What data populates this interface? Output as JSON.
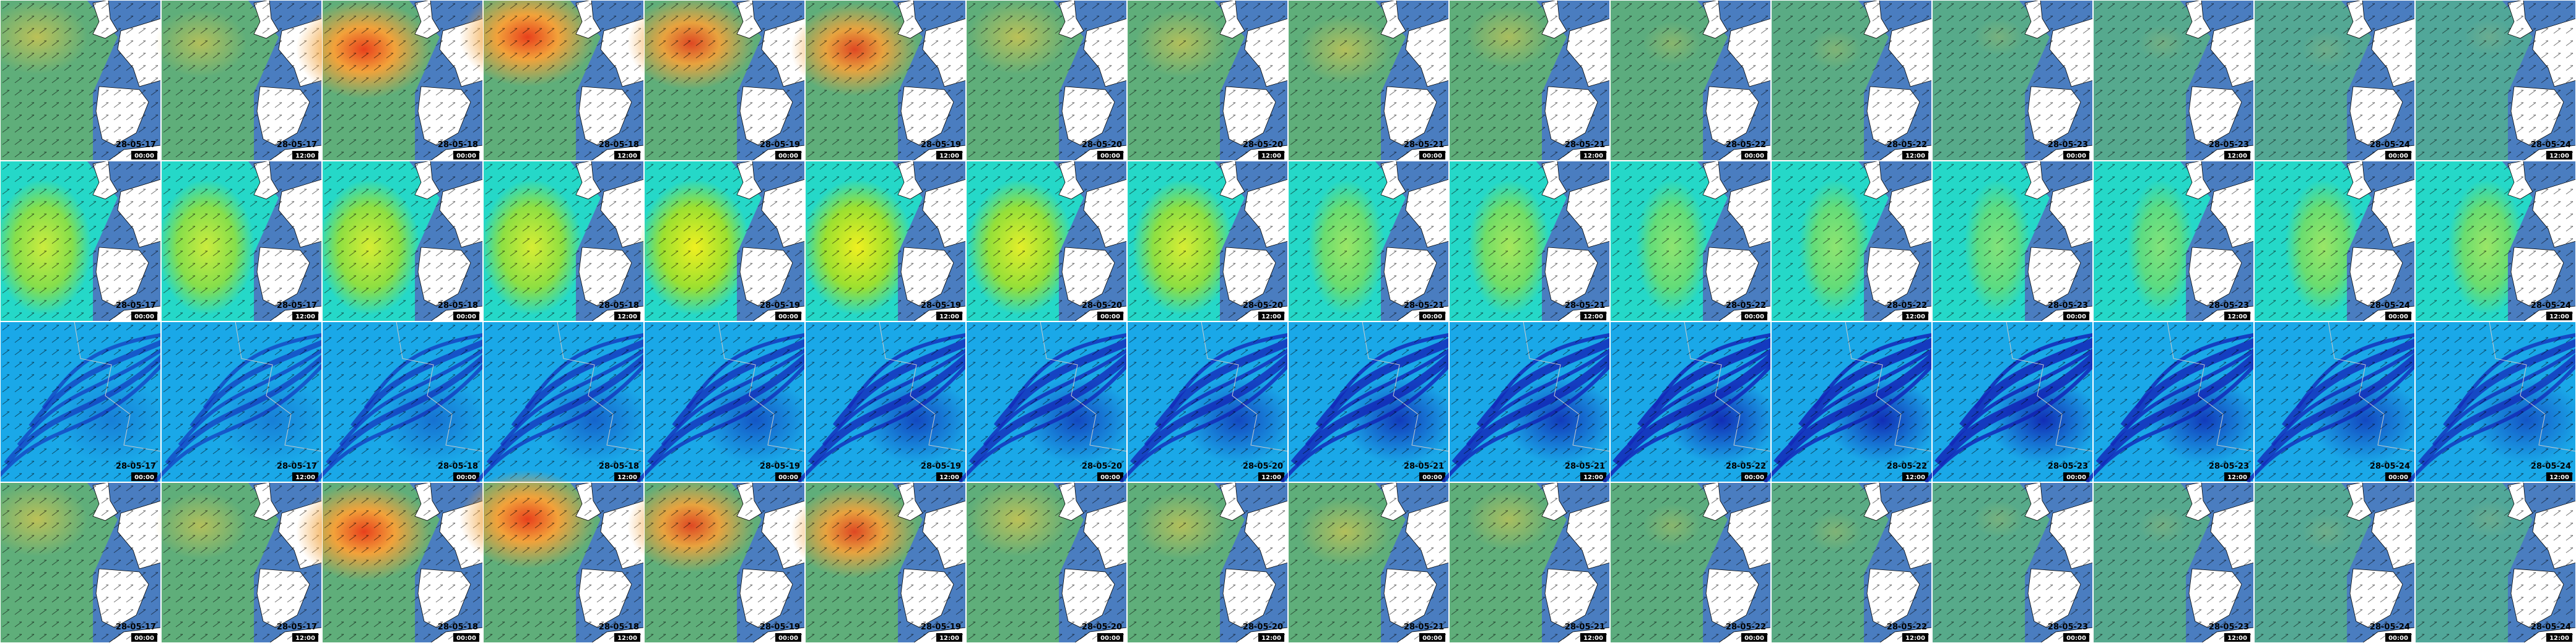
{
  "columns": [
    {
      "date": "28-05-17",
      "time": "00:00"
    },
    {
      "date": "28-05-17",
      "time": "12:00"
    },
    {
      "date": "28-05-18",
      "time": "00:00"
    },
    {
      "date": "28-05-18",
      "time": "12:00"
    },
    {
      "date": "28-05-19",
      "time": "00:00"
    },
    {
      "date": "28-05-19",
      "time": "12:00"
    },
    {
      "date": "28-05-20",
      "time": "00:00"
    },
    {
      "date": "28-05-20",
      "time": "12:00"
    },
    {
      "date": "28-05-21",
      "time": "00:00"
    },
    {
      "date": "28-05-21",
      "time": "12:00"
    },
    {
      "date": "28-05-22",
      "time": "00:00"
    },
    {
      "date": "28-05-22",
      "time": "12:00"
    },
    {
      "date": "28-05-23",
      "time": "00:00"
    },
    {
      "date": "28-05-23",
      "time": "12:00"
    },
    {
      "date": "28-05-24",
      "time": "00:00"
    },
    {
      "date": "28-05-24",
      "time": "12:00"
    }
  ]
}
